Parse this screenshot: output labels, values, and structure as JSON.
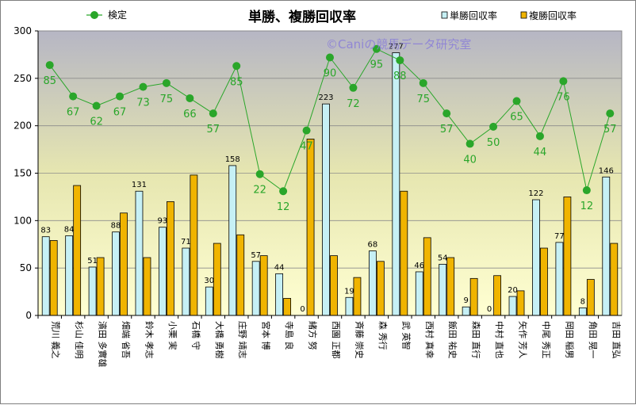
{
  "chart_data": {
    "type": "bar",
    "title": "単勝、複勝回収率",
    "watermark": "©Caniの競馬データ研究室",
    "ylim": [
      0,
      300
    ],
    "yticks": [
      0,
      50,
      100,
      150,
      200,
      250,
      300
    ],
    "grid": true,
    "legend_position": "top",
    "categories": [
      "荒川 義之",
      "杉山 佳明",
      "濱田 多實雄",
      "畑端 省吾",
      "鈴木 孝志",
      "小栗 実",
      "石橋 守",
      "大橋 勇樹",
      "庄野 靖志",
      "宮本 博",
      "寺島 良",
      "緒方 努",
      "西園 正都",
      "斉藤 崇史",
      "森 秀行",
      "武 英智",
      "西村 真幸",
      "飯田 祐史",
      "森田 直行",
      "中村 直也",
      "矢作 芳人",
      "中尾 秀正",
      "岡田 稲男",
      "角田 晃一",
      "吉田 直弘"
    ],
    "series": [
      {
        "name": "単勝回収率",
        "kind": "bar",
        "color": "#c6f0f5",
        "values": [
          83,
          84,
          51,
          88,
          131,
          93,
          71,
          30,
          158,
          57,
          44,
          0,
          223,
          19,
          68,
          277,
          46,
          54,
          9,
          0,
          20,
          122,
          77,
          8,
          146
        ],
        "labels": [
          "83",
          "84",
          "51",
          "88",
          "131",
          "93",
          "71",
          "30",
          "158",
          "57",
          "44",
          "0",
          "223",
          "19",
          "68",
          "277",
          "46",
          "54",
          "9",
          "0",
          "20",
          "122",
          "77",
          "8",
          "146"
        ]
      },
      {
        "name": "複勝回収率",
        "kind": "bar",
        "color": "#f0b400",
        "values": [
          79,
          137,
          61,
          108,
          61,
          120,
          148,
          76,
          85,
          63,
          18,
          186,
          63,
          40,
          57,
          131,
          82,
          61,
          39,
          42,
          26,
          71,
          125,
          38,
          76
        ]
      },
      {
        "name": "検定",
        "kind": "line",
        "color": "#2aa62a",
        "values": [
          264,
          231,
          221,
          231,
          241,
          245,
          229,
          213,
          263,
          149,
          131,
          195,
          272,
          240,
          281,
          269,
          245,
          213,
          181,
          199,
          226,
          189,
          247,
          132,
          213
        ],
        "labels": [
          "85",
          "67",
          "62",
          "67",
          "73",
          "75",
          "66",
          "57",
          "85",
          "22",
          "12",
          "47",
          "90",
          "72",
          "95",
          "88",
          "75",
          "57",
          "40",
          "50",
          "65",
          "44",
          "76",
          "12",
          "57"
        ]
      }
    ]
  }
}
